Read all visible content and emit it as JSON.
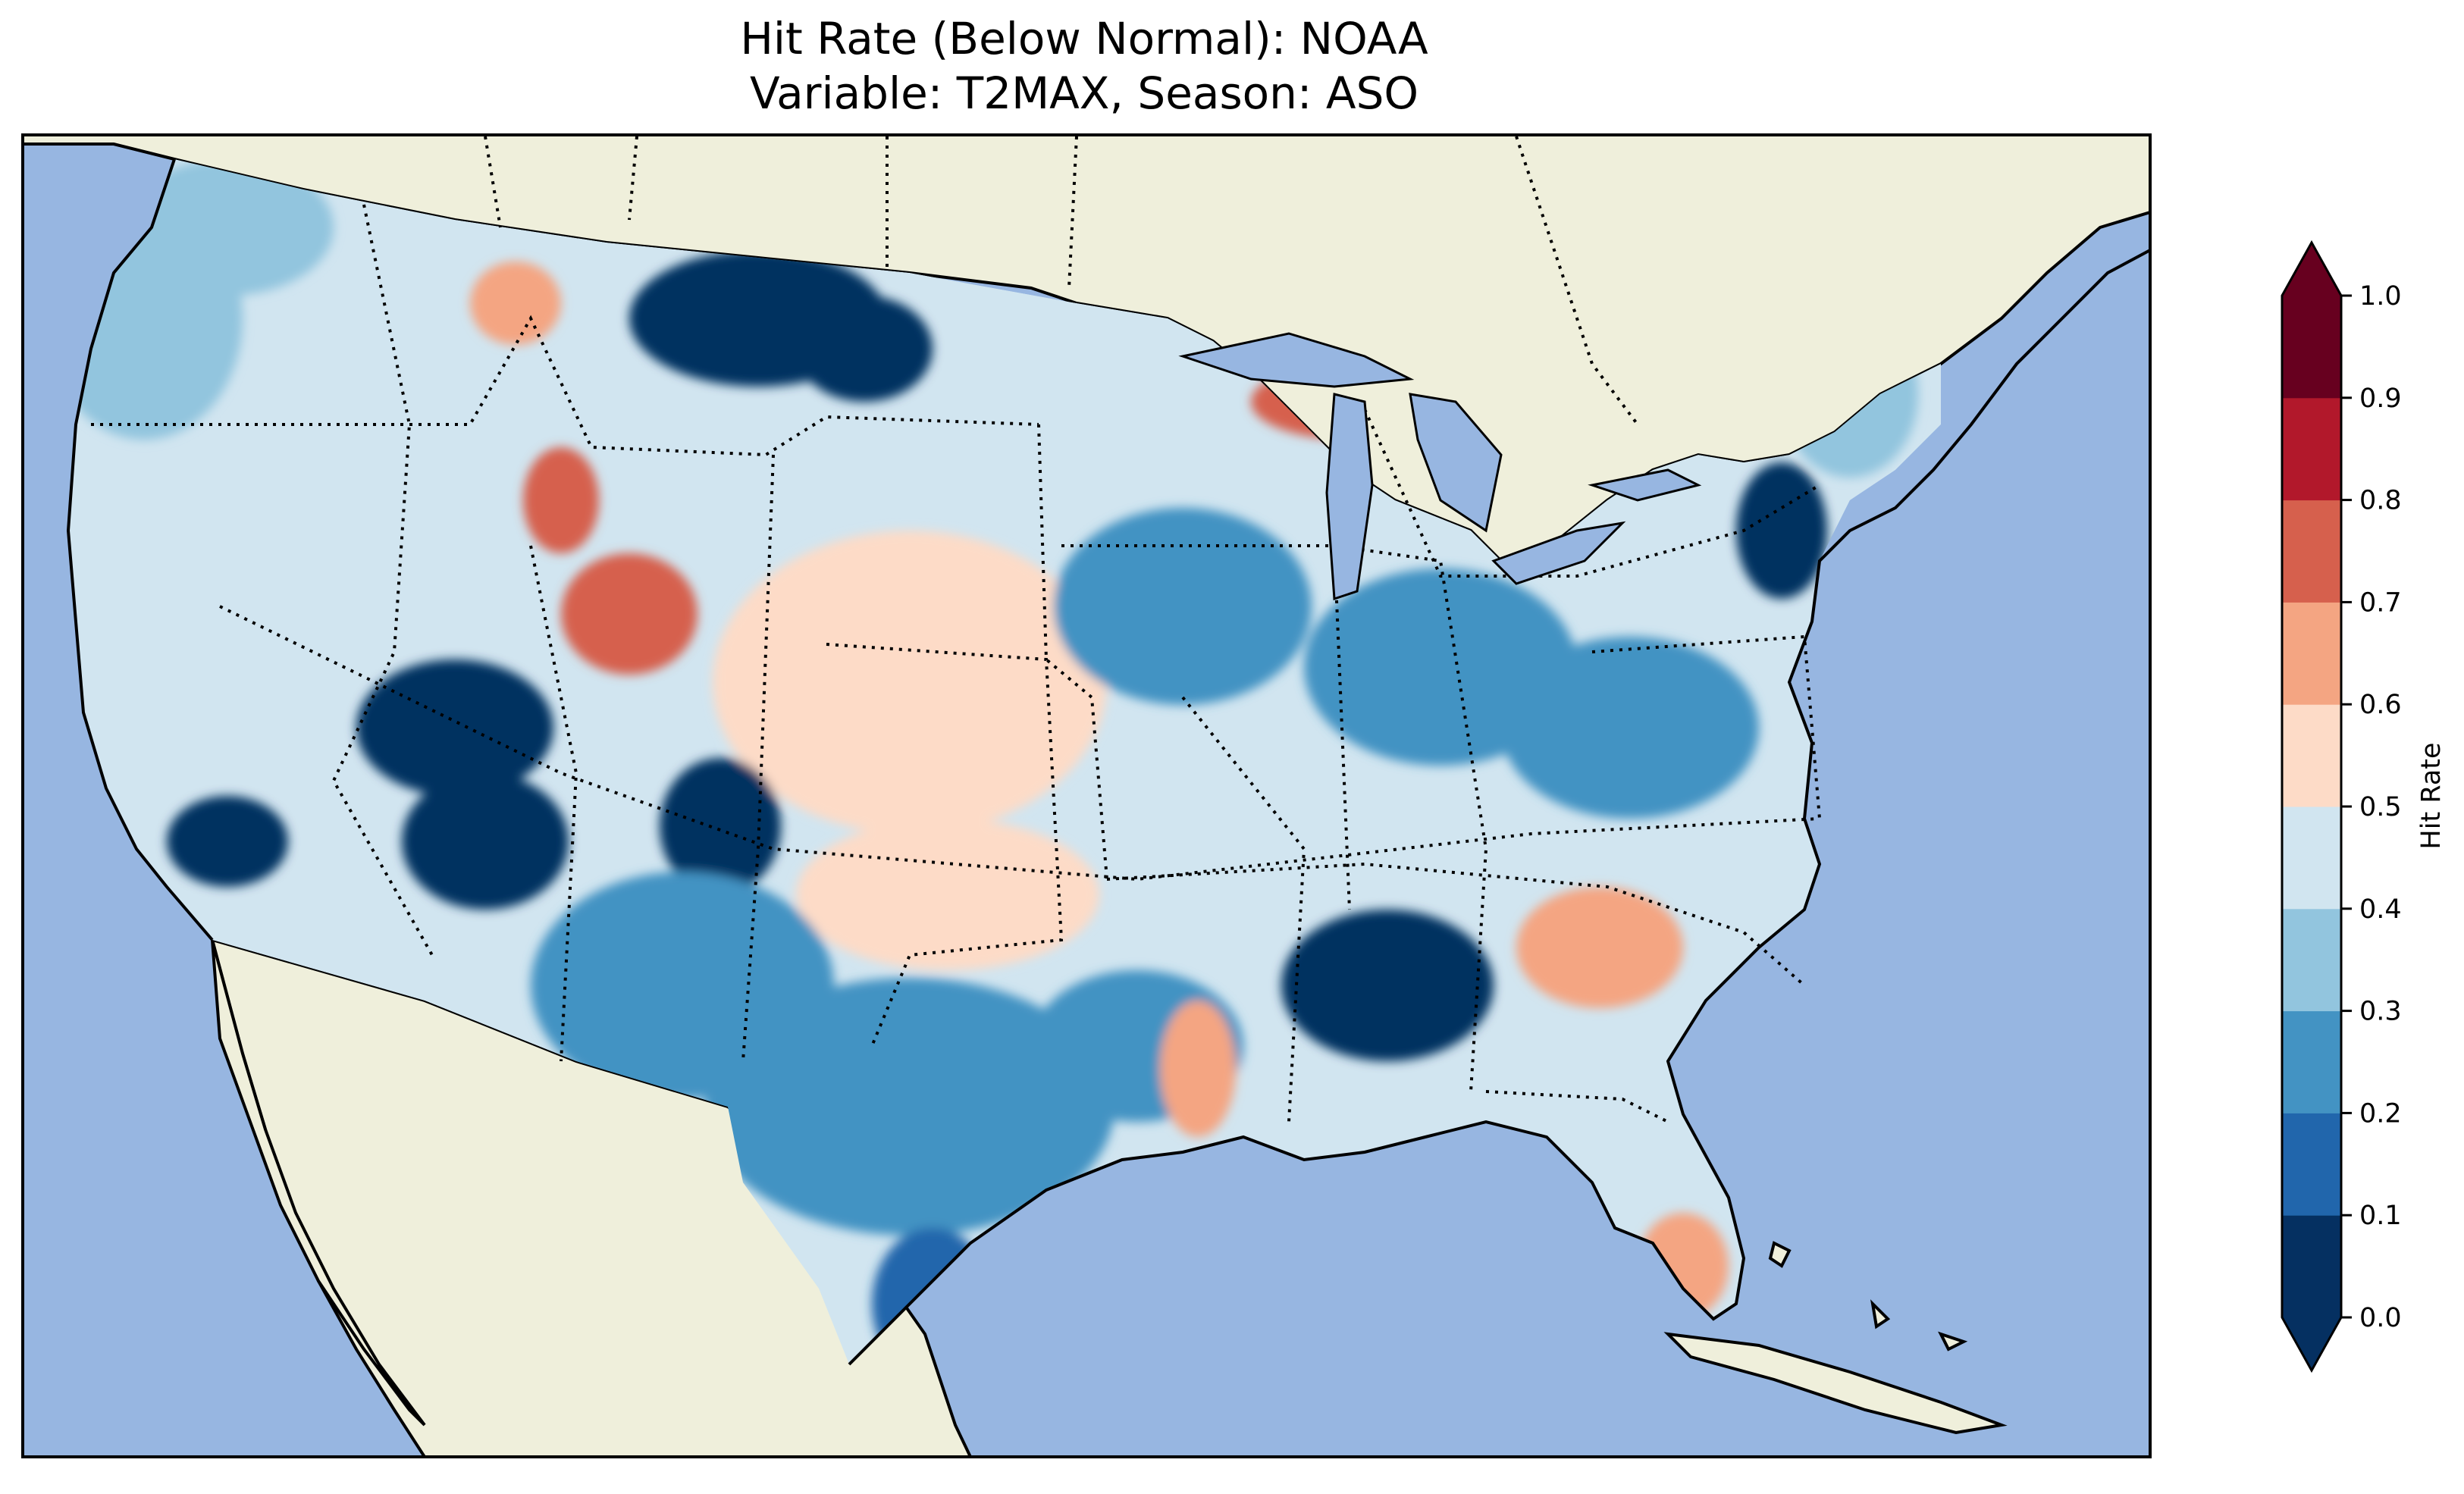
{
  "title": {
    "line1": "Hit Rate (Below Normal): NOAA",
    "line2": "Variable: T2MAX, Season: ASO"
  },
  "colors": {
    "ocean": "#97b6e1",
    "land": "#efefdb",
    "frame": "#000000"
  },
  "colorbar": {
    "label": "Hit Rate",
    "boundaries": [
      0.0,
      0.1,
      0.2,
      0.3,
      0.4,
      0.5,
      0.6,
      0.7,
      0.8,
      0.9,
      1.0
    ],
    "tick_labels": [
      "0.0",
      "0.1",
      "0.2",
      "0.3",
      "0.4",
      "0.5",
      "0.6",
      "0.7",
      "0.8",
      "0.9",
      "1.0"
    ],
    "colors": [
      "#053061",
      "#2166ac",
      "#4393c3",
      "#92c5de",
      "#d1e5f0",
      "#fddbc7",
      "#f4a582",
      "#d6604d",
      "#b2182b",
      "#67001f"
    ],
    "under_color": "#053061",
    "over_color": "#67001f",
    "extend": "both"
  },
  "regions": [
    {
      "name": "Pacific Northwest coast",
      "hit_rate": 0.35
    },
    {
      "name": "Northern Rockies / Montana",
      "hit_rate": 0.05
    },
    {
      "name": "Central Idaho",
      "hit_rate": 0.62
    },
    {
      "name": "Wyoming / Colorado",
      "hit_rate": 0.72
    },
    {
      "name": "Central Plains",
      "hit_rate": 0.52
    },
    {
      "name": "Southern California",
      "hit_rate": 0.05
    },
    {
      "name": "Nevada / Arizona",
      "hit_rate": 0.08
    },
    {
      "name": "New Mexico",
      "hit_rate": 0.05
    },
    {
      "name": "Texas",
      "hit_rate": 0.25
    },
    {
      "name": "South Texas",
      "hit_rate": 0.15
    },
    {
      "name": "Upper Great Lakes",
      "hit_rate": 0.72
    },
    {
      "name": "Midwest",
      "hit_rate": 0.25
    },
    {
      "name": "Mississippi / Alabama",
      "hit_rate": 0.05
    },
    {
      "name": "Georgia / Carolinas",
      "hit_rate": 0.65
    },
    {
      "name": "South Florida",
      "hit_rate": 0.68
    },
    {
      "name": "Mid-Atlantic",
      "hit_rate": 0.08
    },
    {
      "name": "New England",
      "hit_rate": 0.3
    },
    {
      "name": "Arkansas / Louisiana",
      "hit_rate": 0.65
    }
  ]
}
